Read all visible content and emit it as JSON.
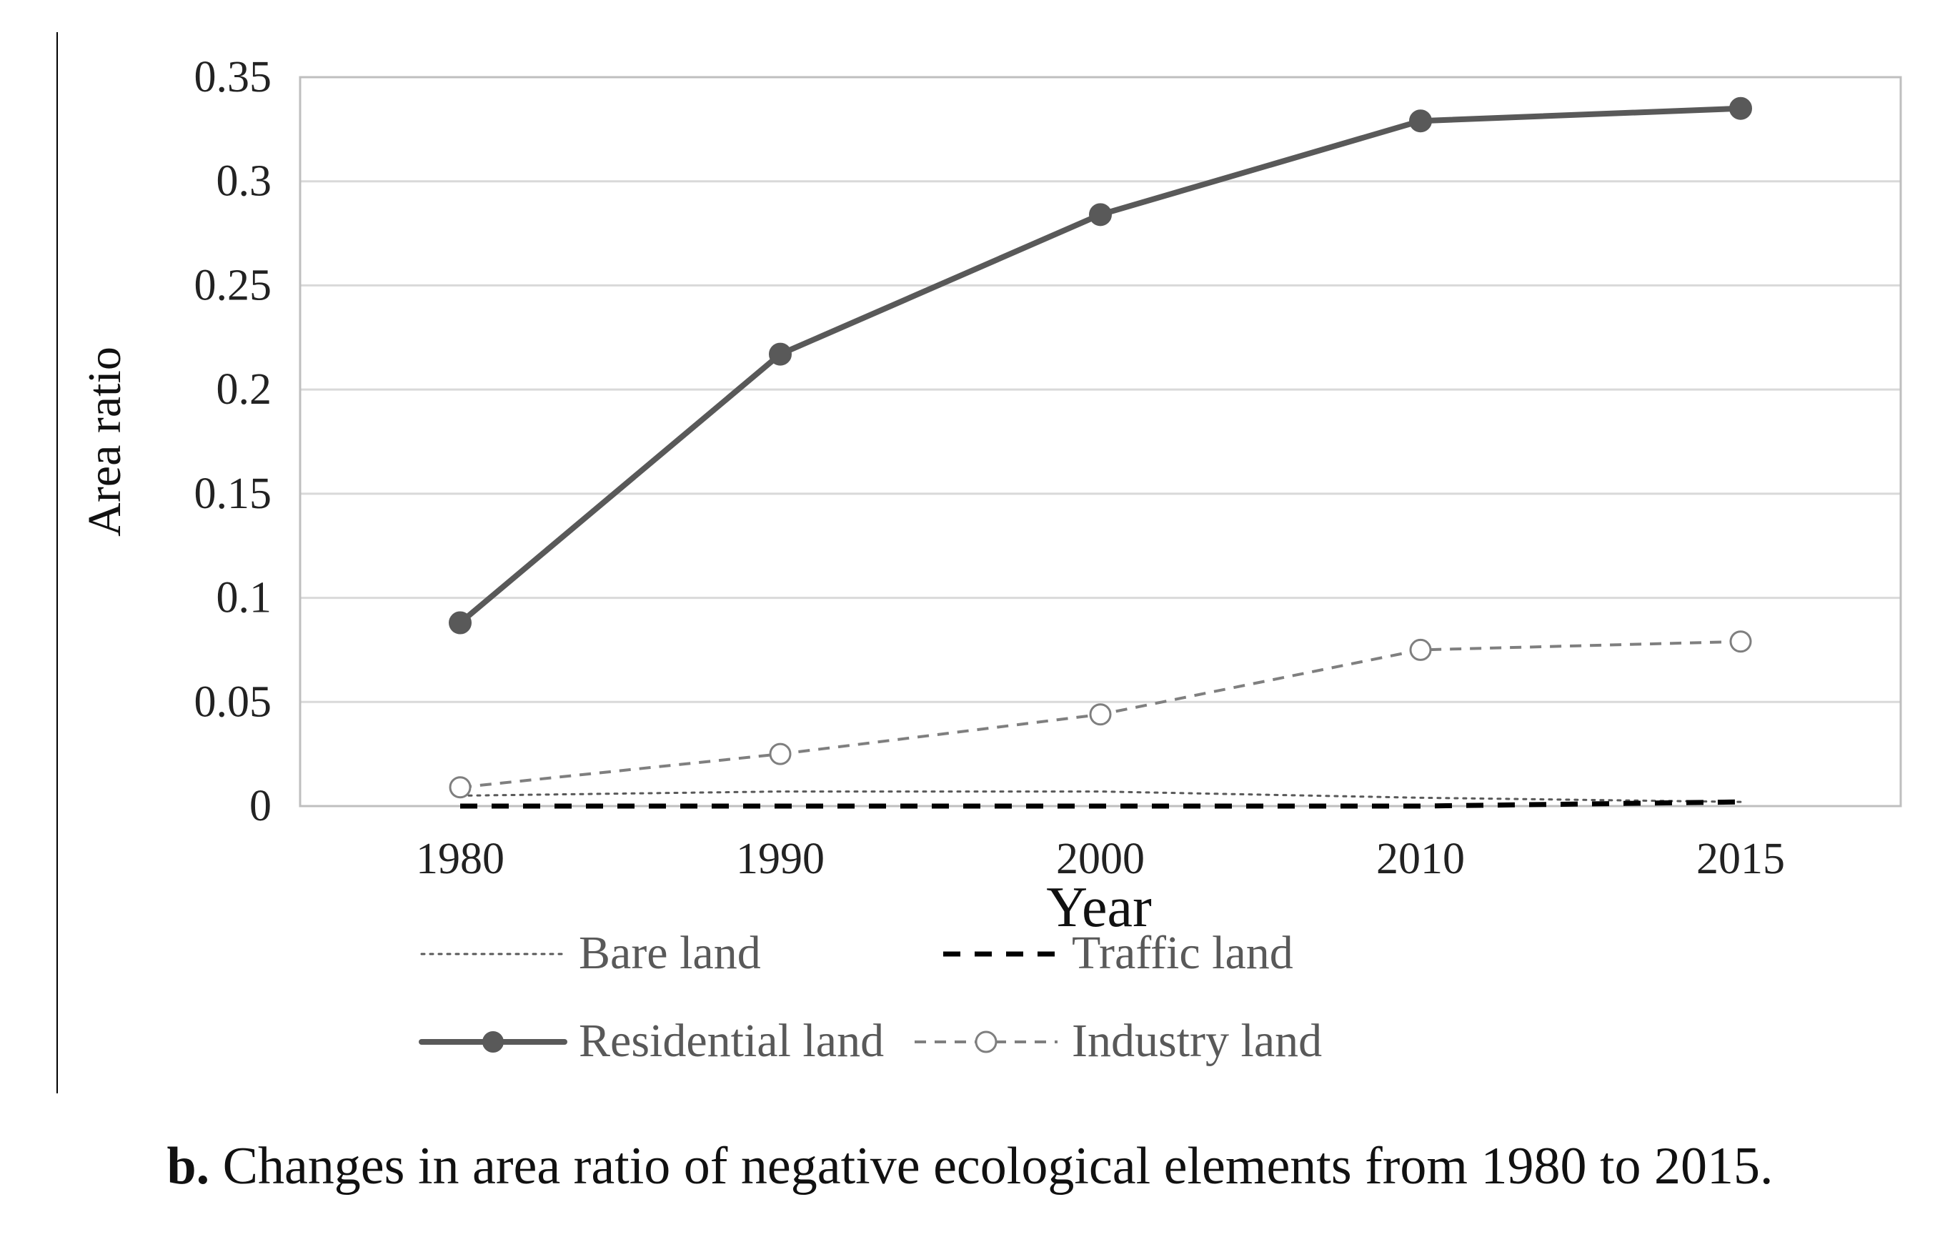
{
  "chart_data": {
    "type": "line",
    "title": "",
    "xlabel": "Year",
    "ylabel": "Area ratio",
    "categories": [
      "1980",
      "1990",
      "2000",
      "2010",
      "2015"
    ],
    "ylim": [
      0,
      0.35
    ],
    "yticks": [
      0,
      0.05,
      0.1,
      0.15,
      0.2,
      0.25,
      0.3,
      0.35
    ],
    "ytick_labels": [
      "0",
      "0.05",
      "0.1",
      "0.15",
      "0.2",
      "0.25",
      "0.3",
      "0.35"
    ],
    "grid": true,
    "legend_position": "bottom",
    "series": [
      {
        "name": "Bare land",
        "style": "dotted",
        "marker": "none",
        "color": "#595959",
        "values": [
          0.005,
          0.007,
          0.007,
          0.004,
          0.002
        ]
      },
      {
        "name": "Traffic land",
        "style": "dashed",
        "marker": "none",
        "color": "#000000",
        "values": [
          0.0,
          0.0,
          0.0,
          0.0,
          0.002
        ]
      },
      {
        "name": "Residential land",
        "style": "solid",
        "marker": "filled-circle",
        "color": "#595959",
        "values": [
          0.088,
          0.217,
          0.284,
          0.329,
          0.335
        ]
      },
      {
        "name": "Industry land",
        "style": "dashed",
        "marker": "open-circle",
        "color": "#7f7f7f",
        "values": [
          0.009,
          0.025,
          0.044,
          0.075,
          0.079
        ]
      }
    ]
  },
  "caption": {
    "label": "b.",
    "text": " Changes in area ratio of negative ecological elements from 1980 to 2015."
  }
}
